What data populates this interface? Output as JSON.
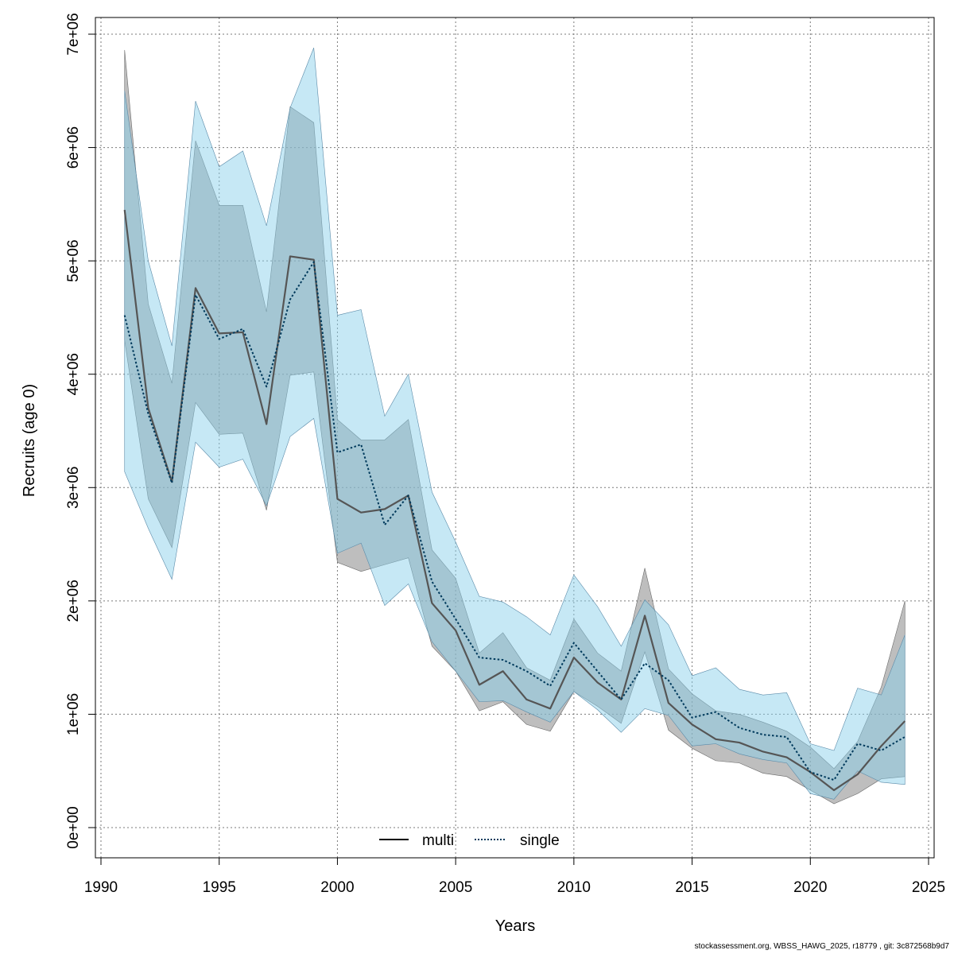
{
  "chart_data": {
    "type": "line",
    "xlabel": "Years",
    "ylabel": "Recruits (age 0)",
    "xlim": [
      1990,
      2025
    ],
    "ylim": [
      0,
      7000000
    ],
    "x_ticks": [
      1990,
      1995,
      2000,
      2005,
      2010,
      2015,
      2020,
      2025
    ],
    "y_ticks": [
      0,
      1000000,
      2000000,
      3000000,
      4000000,
      5000000,
      6000000,
      7000000
    ],
    "y_tick_labels": [
      "0e+00",
      "1e+06",
      "2e+06",
      "3e+06",
      "4e+06",
      "5e+06",
      "6e+06",
      "7e+06"
    ],
    "grid": true,
    "legend_position": "bottom-center",
    "x": [
      1991,
      1992,
      1993,
      1994,
      1995,
      1996,
      1997,
      1998,
      1999,
      2000,
      2001,
      2002,
      2003,
      2004,
      2005,
      2006,
      2007,
      2008,
      2009,
      2010,
      2011,
      2012,
      2013,
      2014,
      2015,
      2016,
      2017,
      2018,
      2019,
      2020,
      2021,
      2022,
      2023,
      2024
    ],
    "series": [
      {
        "name": "multi",
        "line_style": "solid",
        "line_color": "#555555",
        "band_color": "#888888",
        "values": [
          5450000,
          3700000,
          3050000,
          4760000,
          4360000,
          4370000,
          3560000,
          5040000,
          5010000,
          2900000,
          2780000,
          2810000,
          2930000,
          1980000,
          1740000,
          1260000,
          1380000,
          1130000,
          1050000,
          1500000,
          1280000,
          1130000,
          1870000,
          1100000,
          910000,
          780000,
          750000,
          670000,
          620000,
          490000,
          330000,
          470000,
          720000,
          940000
        ],
        "lower": [
          4300000,
          2900000,
          2470000,
          3750000,
          3470000,
          3480000,
          2800000,
          3990000,
          4020000,
          2340000,
          2260000,
          2320000,
          2380000,
          1600000,
          1380000,
          1030000,
          1110000,
          910000,
          850000,
          1200000,
          1070000,
          920000,
          1550000,
          860000,
          700000,
          590000,
          570000,
          480000,
          450000,
          330000,
          210000,
          300000,
          430000,
          450000
        ],
        "upper": [
          6860000,
          4620000,
          3920000,
          6060000,
          5490000,
          5490000,
          4550000,
          6360000,
          6220000,
          3600000,
          3420000,
          3420000,
          3600000,
          2450000,
          2200000,
          1540000,
          1720000,
          1410000,
          1300000,
          1840000,
          1540000,
          1380000,
          2290000,
          1400000,
          1180000,
          1030000,
          1000000,
          930000,
          850000,
          710000,
          520000,
          760000,
          1240000,
          2000000
        ]
      },
      {
        "name": "single",
        "line_style": "dotted",
        "line_color": "#003a5c",
        "band_color": "#87ceeb",
        "values": [
          4520000,
          3650000,
          3040000,
          4700000,
          4310000,
          4400000,
          3890000,
          4660000,
          4990000,
          3310000,
          3380000,
          2670000,
          2930000,
          2170000,
          1840000,
          1500000,
          1480000,
          1380000,
          1250000,
          1630000,
          1380000,
          1130000,
          1450000,
          1300000,
          970000,
          1020000,
          880000,
          820000,
          800000,
          490000,
          420000,
          740000,
          680000,
          800000
        ],
        "lower": [
          3140000,
          2640000,
          2190000,
          3400000,
          3180000,
          3250000,
          2840000,
          3450000,
          3610000,
          2420000,
          2510000,
          1960000,
          2150000,
          1640000,
          1380000,
          1110000,
          1120000,
          1020000,
          930000,
          1200000,
          1040000,
          840000,
          1050000,
          990000,
          720000,
          740000,
          650000,
          600000,
          570000,
          300000,
          250000,
          500000,
          400000,
          380000
        ],
        "upper": [
          6500000,
          5000000,
          4250000,
          6410000,
          5830000,
          5970000,
          5310000,
          6350000,
          6880000,
          4520000,
          4570000,
          3630000,
          4000000,
          2960000,
          2520000,
          2040000,
          1990000,
          1860000,
          1700000,
          2230000,
          1950000,
          1600000,
          2010000,
          1790000,
          1340000,
          1410000,
          1220000,
          1170000,
          1190000,
          740000,
          680000,
          1230000,
          1170000,
          1700000
        ]
      }
    ]
  },
  "footer": {
    "note": "stockassessment.org, WBSS_HAWG_2025, r18779 , git: 3c872568b9d7"
  }
}
